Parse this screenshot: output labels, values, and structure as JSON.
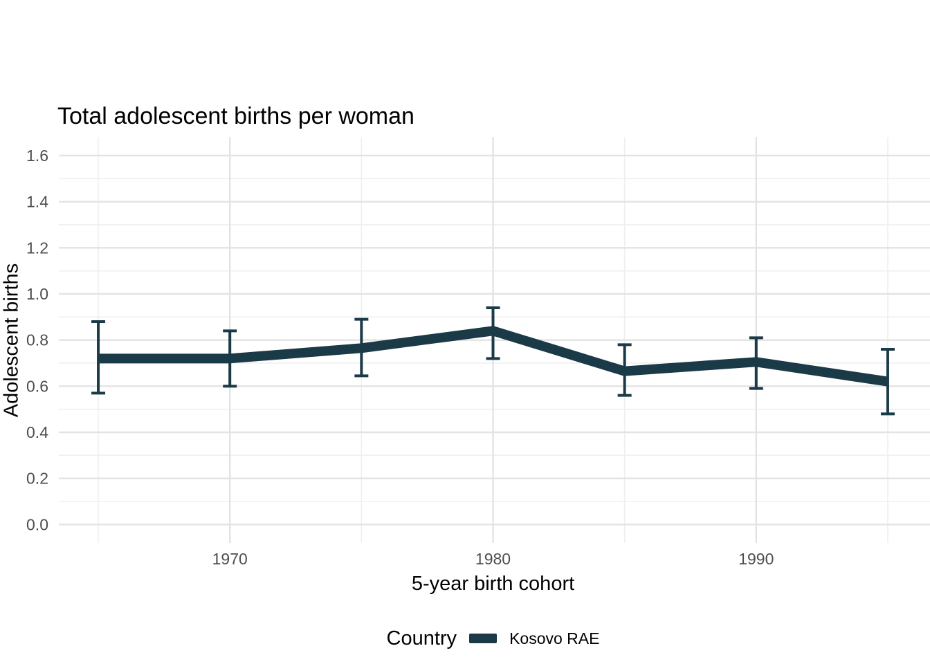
{
  "chart_data": {
    "type": "line",
    "title": "Total adolescent births per woman",
    "xlabel": "5-year birth cohort",
    "ylabel": "Adolescent births",
    "grid": "major+minor",
    "legend": {
      "position": "bottom",
      "title": "Country",
      "entries": [
        {
          "label": "Kosovo RAE",
          "color": "#1b3a47"
        }
      ]
    },
    "x": [
      1965,
      1970,
      1975,
      1980,
      1985,
      1990,
      1995
    ],
    "series": [
      {
        "name": "Kosovo RAE",
        "color": "#1b3a47",
        "values": [
          0.72,
          0.72,
          0.765,
          0.84,
          0.665,
          0.705,
          0.62
        ],
        "ci_low": [
          0.57,
          0.6,
          0.645,
          0.72,
          0.56,
          0.59,
          0.48
        ],
        "ci_high": [
          0.88,
          0.84,
          0.89,
          0.94,
          0.78,
          0.81,
          0.76
        ]
      }
    ],
    "xlim": [
      1963.5,
      1996.5
    ],
    "ylim": [
      -0.08,
      1.68
    ],
    "x_ticks": [
      1970,
      1980,
      1990
    ],
    "x_tick_labels": [
      "1970",
      "1980",
      "1990"
    ],
    "x_minor_ticks": [
      1965,
      1975,
      1985,
      1995
    ],
    "y_ticks": [
      0.0,
      0.2,
      0.4,
      0.6,
      0.8,
      1.0,
      1.2,
      1.4,
      1.6
    ],
    "y_tick_labels": [
      "0.0",
      "0.2",
      "0.4",
      "0.6",
      "0.8",
      "1.0",
      "1.2",
      "1.4",
      "1.6"
    ],
    "y_minor_ticks": [
      0.1,
      0.3,
      0.5,
      0.7,
      0.9,
      1.1,
      1.3,
      1.5
    ]
  },
  "colors": {
    "background": "#ffffff",
    "grid_major": "#e3e3e3",
    "grid_minor": "#efefef",
    "tick_label": "#4d4d4d",
    "text": "#000000",
    "series": "#1b3a47"
  }
}
